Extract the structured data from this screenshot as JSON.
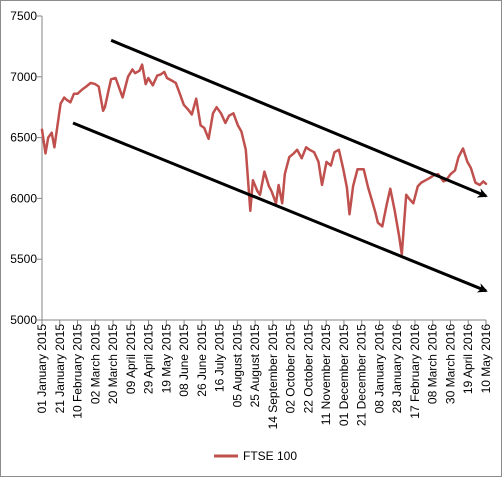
{
  "chart_data": {
    "type": "line",
    "title": "",
    "xlabel": "",
    "ylabel": "",
    "ylim": [
      5000,
      7500
    ],
    "yticks": [
      5000,
      5500,
      6000,
      6500,
      7000,
      7500
    ],
    "ytick_labels": [
      "5000",
      "5500",
      "6000",
      "6500",
      "7000",
      "7500"
    ],
    "grid": false,
    "legend_position": "bottom",
    "xtick_labels": [
      "01 January 2015",
      "21 January 2015",
      "10 February 2015",
      "02 March 2015",
      "20 March 2015",
      "09 April 2015",
      "29 April 2015",
      "19 May 2015",
      "08 June 2015",
      "26 June 2015",
      "16 July 2015",
      "05 August 2015",
      "25 August 2015",
      "14 September 2015",
      "02 October 2015",
      "22 October 2015",
      "11 November 2015",
      "01 December 2015",
      "21 December 2015",
      "08 January 2016",
      "28 January 2016",
      "17 February 2016",
      "08 March 2016",
      "30 March 2016",
      "19 April 2016",
      "10 May 2016"
    ],
    "series": [
      {
        "name": "FTSE 100",
        "color": "#c0504d",
        "x": [
          "2015-01-01",
          "2015-01-05",
          "2015-01-08",
          "2015-01-12",
          "2015-01-15",
          "2015-01-19",
          "2015-01-22",
          "2015-01-26",
          "2015-01-29",
          "2015-02-02",
          "2015-02-06",
          "2015-02-10",
          "2015-02-16",
          "2015-02-20",
          "2015-02-25",
          "2015-03-02",
          "2015-03-06",
          "2015-03-11",
          "2015-03-13",
          "2015-03-18",
          "2015-03-20",
          "2015-03-25",
          "2015-03-30",
          "2015-04-02",
          "2015-04-08",
          "2015-04-13",
          "2015-04-16",
          "2015-04-21",
          "2015-04-24",
          "2015-04-28",
          "2015-05-01",
          "2015-05-06",
          "2015-05-11",
          "2015-05-15",
          "2015-05-19",
          "2015-05-22",
          "2015-05-27",
          "2015-06-01",
          "2015-06-05",
          "2015-06-10",
          "2015-06-15",
          "2015-06-19",
          "2015-06-24",
          "2015-06-29",
          "2015-07-03",
          "2015-07-08",
          "2015-07-13",
          "2015-07-17",
          "2015-07-22",
          "2015-07-27",
          "2015-07-31",
          "2015-08-05",
          "2015-08-10",
          "2015-08-14",
          "2015-08-19",
          "2015-08-24",
          "2015-08-27",
          "2015-09-01",
          "2015-09-04",
          "2015-09-09",
          "2015-09-14",
          "2015-09-17",
          "2015-09-22",
          "2015-09-25",
          "2015-09-29",
          "2015-10-02",
          "2015-10-07",
          "2015-10-12",
          "2015-10-16",
          "2015-10-21",
          "2015-10-26",
          "2015-10-30",
          "2015-11-04",
          "2015-11-09",
          "2015-11-13",
          "2015-11-18",
          "2015-11-23",
          "2015-11-27",
          "2015-12-02",
          "2015-12-07",
          "2015-12-11",
          "2015-12-14",
          "2015-12-18",
          "2015-12-23",
          "2015-12-30",
          "2016-01-04",
          "2016-01-08",
          "2016-01-12",
          "2016-01-15",
          "2016-01-20",
          "2016-01-25",
          "2016-01-29",
          "2016-02-03",
          "2016-02-08",
          "2016-02-11",
          "2016-02-16",
          "2016-02-19",
          "2016-02-24",
          "2016-02-29",
          "2016-03-04",
          "2016-03-09",
          "2016-03-14",
          "2016-03-18",
          "2016-03-23",
          "2016-03-29",
          "2016-04-01",
          "2016-04-06",
          "2016-04-11",
          "2016-04-15",
          "2016-04-20",
          "2016-04-25",
          "2016-04-29",
          "2016-05-04",
          "2016-05-09",
          "2016-05-13",
          "2016-05-16"
        ],
        "y": [
          6566,
          6370,
          6500,
          6540,
          6420,
          6630,
          6780,
          6830,
          6810,
          6790,
          6860,
          6860,
          6900,
          6920,
          6950,
          6940,
          6920,
          6720,
          6750,
          6920,
          6980,
          6990,
          6890,
          6830,
          7000,
          7060,
          7030,
          7050,
          7100,
          6940,
          6990,
          6930,
          7010,
          7020,
          7040,
          6990,
          6970,
          6950,
          6870,
          6770,
          6730,
          6690,
          6820,
          6600,
          6580,
          6490,
          6700,
          6750,
          6700,
          6620,
          6680,
          6700,
          6600,
          6550,
          6400,
          5898,
          6150,
          6060,
          6030,
          6220,
          6100,
          6060,
          5960,
          6110,
          5960,
          6200,
          6340,
          6370,
          6400,
          6330,
          6420,
          6400,
          6380,
          6300,
          6110,
          6300,
          6270,
          6380,
          6400,
          6240,
          6090,
          5870,
          6100,
          6240,
          6240,
          6090,
          5990,
          5890,
          5800,
          5770,
          5950,
          6080,
          5900,
          5690,
          5540,
          6030,
          6000,
          5960,
          6100,
          6130,
          6150,
          6170,
          6190,
          6200,
          6140,
          6150,
          6200,
          6230,
          6340,
          6410,
          6300,
          6250,
          6130,
          6110,
          6140,
          6120
        ]
      }
    ],
    "annotations": [
      {
        "type": "arrow",
        "from": [
          "2015-03-20",
          7300
        ],
        "to": [
          "2016-05-16",
          6020
        ]
      },
      {
        "type": "arrow",
        "from": [
          "2015-02-05",
          6620
        ],
        "to": [
          "2016-05-16",
          5240
        ]
      }
    ]
  }
}
